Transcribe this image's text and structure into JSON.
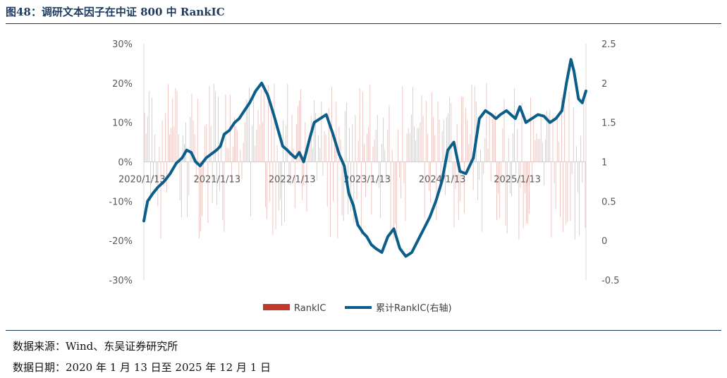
{
  "figure": {
    "title": "图48：调研文本因子在中证 800 中 RankIC",
    "source": "数据来源：Wind、东吴证券研究所",
    "date_range": "数据日期：2020 年 1 月 13 日至 2025 年 12 月 1 日"
  },
  "colors": {
    "bar": "#c0392b",
    "line": "#0b5e8a",
    "rule": "#1f3a5f"
  },
  "chart_data": {
    "type": "bar+line",
    "title": "",
    "left_axis": {
      "ylim": [
        -0.3,
        0.3
      ],
      "ticks": [
        "30%",
        "20%",
        "10%",
        "0%",
        "-10%",
        "-20%",
        "-30%"
      ],
      "values": [
        0.3,
        0.2,
        0.1,
        0,
        -0.1,
        -0.2,
        -0.3
      ]
    },
    "right_axis": {
      "ylim": [
        -0.5,
        2.5
      ],
      "ticks": [
        "2.5",
        "2",
        "1.5",
        "1",
        "0.5",
        "0",
        "-0.5"
      ],
      "values": [
        2.5,
        2,
        1.5,
        1,
        0.5,
        0,
        -0.5
      ]
    },
    "x_labels": [
      "2020/1/13",
      "2021/1/13",
      "2022/1/13",
      "2023/1/13",
      "2024/1/13",
      "2025/1/13"
    ],
    "x_range": [
      2020.03,
      2025.92
    ],
    "legend": [
      "RankIC",
      "累计RankIC(右轴)"
    ],
    "series": [
      {
        "name": "累计RankIC(右轴)",
        "axis": "right",
        "x": [
          2020.03,
          2020.08,
          2020.15,
          2020.22,
          2020.3,
          2020.38,
          2020.46,
          2020.54,
          2020.6,
          2020.66,
          2020.72,
          2020.78,
          2020.86,
          2020.93,
          2021.0,
          2021.05,
          2021.1,
          2021.17,
          2021.24,
          2021.3,
          2021.37,
          2021.44,
          2021.52,
          2021.6,
          2021.68,
          2021.76,
          2021.82,
          2021.88,
          2021.94,
          2021.99,
          2022.05,
          2022.1,
          2022.16,
          2022.24,
          2022.3,
          2022.38,
          2022.46,
          2022.55,
          2022.63,
          2022.7,
          2022.76,
          2022.82,
          2022.88,
          2022.95,
          2023.0,
          2023.06,
          2023.12,
          2023.2,
          2023.28,
          2023.36,
          2023.44,
          2023.52,
          2023.6,
          2023.68,
          2023.76,
          2023.84,
          2023.92,
          2024.0,
          2024.08,
          2024.16,
          2024.24,
          2024.32,
          2024.42,
          2024.5,
          2024.58,
          2024.66,
          2024.72,
          2024.78,
          2024.86,
          2024.92,
          2024.98,
          2025.04,
          2025.12,
          2025.2,
          2025.28,
          2025.36,
          2025.44,
          2025.52,
          2025.6,
          2025.66,
          2025.72,
          2025.76,
          2025.82,
          2025.87,
          2025.92
        ],
        "values": [
          0.25,
          0.5,
          0.6,
          0.68,
          0.75,
          0.85,
          0.98,
          1.05,
          1.15,
          1.12,
          1.0,
          0.95,
          1.05,
          1.1,
          1.15,
          1.2,
          1.35,
          1.4,
          1.5,
          1.55,
          1.65,
          1.75,
          1.9,
          2.0,
          1.85,
          1.6,
          1.4,
          1.2,
          1.15,
          1.1,
          1.05,
          1.12,
          1.0,
          1.3,
          1.5,
          1.55,
          1.6,
          1.35,
          1.1,
          0.95,
          0.6,
          0.45,
          0.2,
          0.1,
          0.05,
          -0.05,
          -0.1,
          -0.15,
          0.05,
          0.15,
          -0.1,
          -0.2,
          -0.15,
          0.0,
          0.15,
          0.3,
          0.5,
          0.75,
          1.15,
          1.25,
          0.88,
          0.85,
          1.05,
          1.55,
          1.65,
          1.6,
          1.55,
          1.6,
          1.65,
          1.6,
          1.55,
          1.7,
          1.5,
          1.55,
          1.6,
          1.58,
          1.5,
          1.55,
          1.65,
          2.0,
          2.3,
          2.15,
          1.8,
          1.75,
          1.9
        ]
      }
    ],
    "rankic_bars": {
      "name": "RankIC",
      "axis": "left",
      "count": 300,
      "range_approx": [
        -0.25,
        0.22
      ]
    }
  }
}
